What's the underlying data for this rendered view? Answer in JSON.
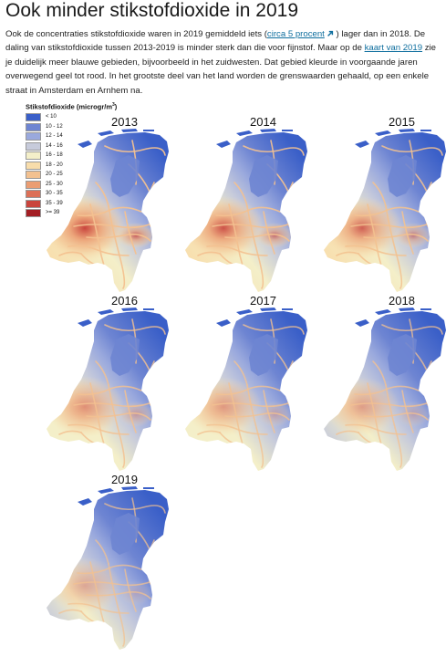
{
  "page": {
    "title": "Ook minder stikstofdioxide in 2019",
    "intro": {
      "part1": "Ook de concentraties stikstofdioxide waren in 2019 gemiddeld iets (",
      "link1": "circa 5 procent",
      "part2": " ) lager dan in 2018. De daling van stikstofdioxide tussen 2013-2019 is minder sterk dan die voor fijnstof. Maar op de ",
      "link2": "kaart van 2019",
      "part3": " zie je duidelijk meer blauwe gebieden, bijvoorbeeld in het zuidwesten. Dat gebied kleurde in voorgaande jaren overwegend geel tot rood.  In het grootste deel van het land worden de grenswaarden gehaald, op een enkele straat in Amsterdam en Arnhem na."
    }
  },
  "legend": {
    "title": "Stikstofdioxide (microgr/m",
    "title_sup": "3",
    "title_end": ")",
    "classes": [
      {
        "label": "< 10",
        "color": "#3a5fc8"
      },
      {
        "label": "10 - 12",
        "color": "#6e85d2"
      },
      {
        "label": "12 - 14",
        "color": "#9aa9dd"
      },
      {
        "label": "14 - 16",
        "color": "#c7cbdb"
      },
      {
        "label": "16 - 18",
        "color": "#f4efc9"
      },
      {
        "label": "18 - 20",
        "color": "#f8ddab"
      },
      {
        "label": "20 - 25",
        "color": "#f3c190"
      },
      {
        "label": "25 - 30",
        "color": "#eb9d72"
      },
      {
        "label": "30 - 35",
        "color": "#dc7057"
      },
      {
        "label": "35 - 39",
        "color": "#c9453d"
      },
      {
        "label": ">= 39",
        "color": "#a31e23"
      }
    ]
  },
  "maps": [
    {
      "year": "2013",
      "west_level": 1.0,
      "blue_share": 0.35
    },
    {
      "year": "2014",
      "west_level": 0.92,
      "blue_share": 0.4
    },
    {
      "year": "2015",
      "west_level": 0.84,
      "blue_share": 0.46
    },
    {
      "year": "2016",
      "west_level": 0.74,
      "blue_share": 0.55
    },
    {
      "year": "2017",
      "west_level": 0.66,
      "blue_share": 0.6
    },
    {
      "year": "2018",
      "west_level": 0.6,
      "blue_share": 0.66
    },
    {
      "year": "2019",
      "west_level": 0.5,
      "blue_share": 0.76
    }
  ]
}
